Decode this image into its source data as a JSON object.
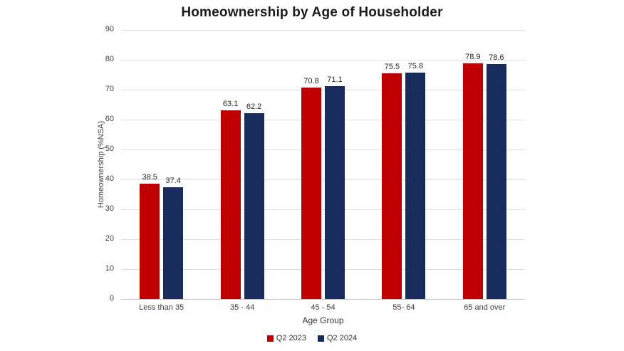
{
  "chart_data": {
    "type": "bar",
    "title": "Homeownership by Age of Householder",
    "xlabel": "Age Group",
    "ylabel": "Homeownership (%NSA)",
    "categories": [
      "Less than 35",
      "35 - 44",
      "45 - 54",
      "55- 64",
      "65 and over"
    ],
    "series": [
      {
        "name": "Q2 2023",
        "color": "#c00000",
        "values": [
          38.5,
          63.1,
          70.8,
          75.5,
          78.9
        ]
      },
      {
        "name": "Q2 2024",
        "color": "#172b5c",
        "values": [
          37.4,
          62.2,
          71.1,
          75.8,
          78.6
        ]
      }
    ],
    "ylim": [
      0,
      90
    ],
    "ytick_step": 10,
    "grid": true,
    "legend_position": "bottom",
    "data_labels": true,
    "colors": {
      "gridline": "#dedede",
      "axis_line": "#c9c9c9",
      "label_text": "#262626",
      "tick_text": "#404040"
    }
  }
}
